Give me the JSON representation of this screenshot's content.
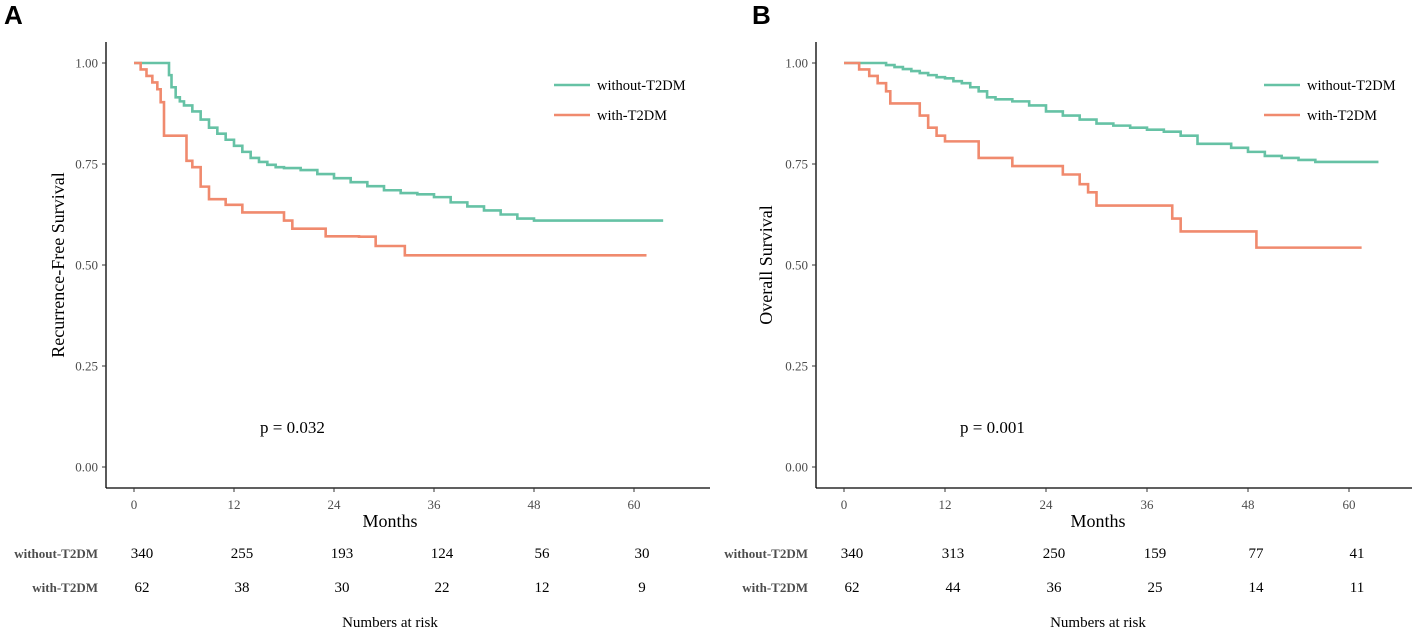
{
  "colors": {
    "without": "#66C2A5",
    "with": "#F08A6E"
  },
  "chart_data": [
    {
      "panel": "A",
      "type": "line",
      "subtype": "kaplan-meier",
      "xlabel": "Months",
      "ylabel": "Recurrence-Free Survival",
      "xlim": [
        -1.5,
        68
      ],
      "ylim": [
        -0.05,
        1.05
      ],
      "x_ticks": [
        0,
        12,
        24,
        36,
        48,
        60
      ],
      "x_tick_labels": [
        "0",
        "12",
        "24",
        "36",
        "48",
        "60"
      ],
      "y_ticks": [
        0,
        0.25,
        0.5,
        0.75,
        1.0
      ],
      "y_tick_labels": [
        "0.00",
        "0.25",
        "0.50",
        "0.75",
        "1.00"
      ],
      "pvalue": "p = 0.032",
      "legend": [
        "without-T2DM",
        "with-T2DM"
      ],
      "legend_position": "top-right",
      "series": [
        {
          "name": "without-T2DM",
          "color_key": "without",
          "x": [
            0,
            4,
            4.2,
            4.5,
            5,
            5.5,
            6,
            7,
            8,
            9,
            10,
            11,
            12,
            13,
            14,
            15,
            16,
            17,
            18,
            20,
            22,
            24,
            26,
            28,
            30,
            32,
            34,
            36,
            38,
            40,
            42,
            44,
            46,
            48,
            63.5
          ],
          "y": [
            1.0,
            1.0,
            0.97,
            0.94,
            0.915,
            0.905,
            0.895,
            0.88,
            0.86,
            0.84,
            0.825,
            0.81,
            0.795,
            0.78,
            0.765,
            0.755,
            0.748,
            0.742,
            0.74,
            0.735,
            0.725,
            0.715,
            0.705,
            0.695,
            0.685,
            0.678,
            0.675,
            0.668,
            0.655,
            0.645,
            0.635,
            0.625,
            0.615,
            0.61,
            0.61
          ]
        },
        {
          "name": "with-T2DM",
          "color_key": "with",
          "x": [
            0,
            0.8,
            1.5,
            2.2,
            2.8,
            3.2,
            3.6,
            6,
            6.3,
            7,
            8,
            9,
            11,
            13,
            18,
            19,
            23,
            27,
            29,
            32.5,
            61.5
          ],
          "y": [
            1.0,
            0.984,
            0.968,
            0.952,
            0.935,
            0.903,
            0.82,
            0.82,
            0.758,
            0.742,
            0.694,
            0.663,
            0.649,
            0.63,
            0.61,
            0.59,
            0.571,
            0.57,
            0.547,
            0.524,
            0.524
          ]
        }
      ],
      "risk_table": {
        "title": "Numbers at risk",
        "times": [
          0,
          12,
          24,
          36,
          48,
          60
        ],
        "rows": [
          {
            "label": "without-T2DM",
            "values": [
              "340",
              "255",
              "193",
              "124",
              "56",
              "30"
            ]
          },
          {
            "label": "with-T2DM",
            "values": [
              "62",
              "38",
              "30",
              "22",
              "12",
              "9"
            ]
          }
        ]
      }
    },
    {
      "panel": "B",
      "type": "line",
      "subtype": "kaplan-meier",
      "xlabel": "Months",
      "ylabel": "Overall Survival",
      "xlim": [
        -1.5,
        68
      ],
      "ylim": [
        -0.05,
        1.05
      ],
      "x_ticks": [
        0,
        12,
        24,
        36,
        48,
        60
      ],
      "x_tick_labels": [
        "0",
        "12",
        "24",
        "36",
        "48",
        "60"
      ],
      "y_ticks": [
        0,
        0.25,
        0.5,
        0.75,
        1.0
      ],
      "y_tick_labels": [
        "0.00",
        "0.25",
        "0.50",
        "0.75",
        "1.00"
      ],
      "pvalue": "p = 0.001",
      "legend": [
        "without-T2DM",
        "with-T2DM"
      ],
      "legend_position": "top-right",
      "series": [
        {
          "name": "without-T2DM",
          "color_key": "without",
          "x": [
            0,
            4,
            5,
            6,
            7,
            8,
            9,
            10,
            11,
            12,
            13,
            14,
            15,
            16,
            17,
            18,
            20,
            22,
            24,
            26,
            28,
            30,
            32,
            34,
            36,
            38,
            40,
            42,
            44,
            46,
            48,
            50,
            52,
            54,
            56,
            63.5
          ],
          "y": [
            1.0,
            1.0,
            0.995,
            0.99,
            0.985,
            0.98,
            0.975,
            0.97,
            0.965,
            0.962,
            0.955,
            0.95,
            0.94,
            0.93,
            0.915,
            0.91,
            0.905,
            0.895,
            0.88,
            0.87,
            0.86,
            0.85,
            0.845,
            0.84,
            0.835,
            0.83,
            0.82,
            0.8,
            0.8,
            0.79,
            0.78,
            0.77,
            0.765,
            0.76,
            0.755,
            0.755
          ]
        },
        {
          "name": "with-T2DM",
          "color_key": "with",
          "x": [
            0,
            1.8,
            3,
            4,
            5,
            5.5,
            9,
            10,
            11,
            12,
            16,
            20,
            26,
            28,
            29,
            30,
            33,
            39,
            40,
            49,
            61.5
          ],
          "y": [
            1.0,
            0.984,
            0.968,
            0.95,
            0.93,
            0.9,
            0.87,
            0.84,
            0.82,
            0.806,
            0.765,
            0.745,
            0.724,
            0.7,
            0.68,
            0.647,
            0.647,
            0.615,
            0.583,
            0.543,
            0.543
          ]
        }
      ],
      "risk_table": {
        "title": "Numbers at risk",
        "times": [
          0,
          12,
          24,
          36,
          48,
          60
        ],
        "rows": [
          {
            "label": "without-T2DM",
            "values": [
              "340",
              "313",
              "250",
              "159",
              "77",
              "41"
            ]
          },
          {
            "label": "with-T2DM",
            "values": [
              "62",
              "44",
              "36",
              "25",
              "14",
              "11"
            ]
          }
        ]
      }
    }
  ]
}
